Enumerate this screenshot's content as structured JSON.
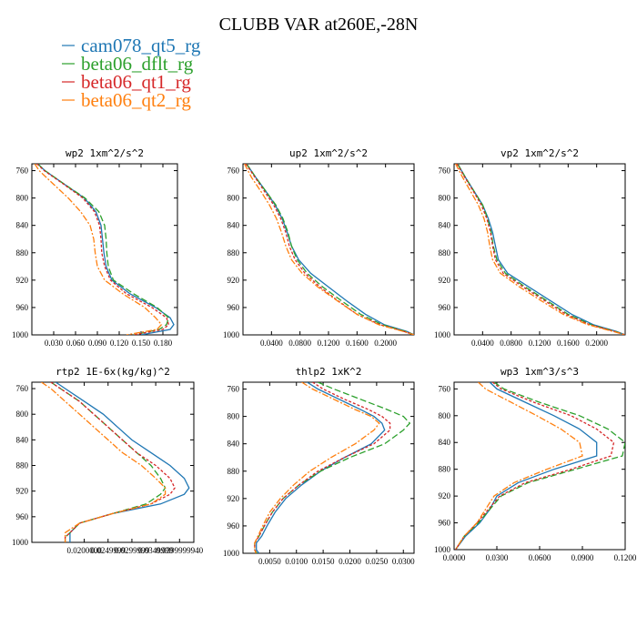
{
  "figure": {
    "title": "CLUBB VAR at260E,-28N",
    "legend": [
      {
        "name": "cam078_qt5_rg",
        "color": "#1f77b4"
      },
      {
        "name": "beta06_dflt_rg",
        "color": "#2ca02c"
      },
      {
        "name": "beta06_qt1_rg",
        "color": "#d62728"
      },
      {
        "name": "beta06_qt2_rg",
        "color": "#ff7f0e"
      }
    ]
  },
  "chart_data": [
    {
      "type": "line",
      "title": "wp2  1xm^2/s^2",
      "xlim": [
        0.0,
        0.2
      ],
      "ylim": [
        1000,
        750
      ],
      "y_reversed": true,
      "xticks": [
        0.03,
        0.06,
        0.09,
        0.12,
        0.15,
        0.18
      ],
      "xtick_labels": [
        "0.030",
        "0.060",
        "0.090",
        "0.120",
        "0.150",
        "0.180"
      ],
      "yticks": [
        760,
        800,
        840,
        880,
        920,
        960,
        1000
      ],
      "y": [
        750,
        760,
        780,
        800,
        820,
        840,
        860,
        880,
        900,
        920,
        940,
        960,
        975,
        985,
        992,
        1000
      ],
      "series": [
        {
          "name": "cam078_qt5_rg",
          "color": "#1f77b4",
          "dash": "",
          "x": [
            0.008,
            0.018,
            0.045,
            0.072,
            0.088,
            0.095,
            0.097,
            0.099,
            0.102,
            0.11,
            0.135,
            0.17,
            0.19,
            0.195,
            0.19,
            0.15
          ]
        },
        {
          "name": "beta06_dflt_rg",
          "color": "#2ca02c",
          "dash": "7,3",
          "x": [
            0.008,
            0.018,
            0.045,
            0.073,
            0.092,
            0.1,
            0.102,
            0.103,
            0.105,
            0.112,
            0.14,
            0.172,
            0.188,
            0.185,
            0.175,
            0.14
          ]
        },
        {
          "name": "beta06_qt1_rg",
          "color": "#d62728",
          "dash": "3,2",
          "x": [
            0.007,
            0.017,
            0.044,
            0.07,
            0.086,
            0.093,
            0.095,
            0.096,
            0.1,
            0.108,
            0.13,
            0.165,
            0.185,
            0.188,
            0.18,
            0.14
          ]
        },
        {
          "name": "beta06_qt2_rg",
          "color": "#ff7f0e",
          "dash": "7,2,2,2",
          "x": [
            0.004,
            0.01,
            0.03,
            0.05,
            0.067,
            0.08,
            0.085,
            0.087,
            0.09,
            0.1,
            0.125,
            0.155,
            0.17,
            0.178,
            0.172,
            0.13
          ]
        }
      ]
    },
    {
      "type": "line",
      "title": "up2  1xm^2/s^2",
      "xlim": [
        0.0,
        0.24
      ],
      "ylim": [
        1000,
        750
      ],
      "y_reversed": true,
      "xticks": [
        0.04,
        0.08,
        0.12,
        0.16,
        0.2
      ],
      "xtick_labels": [
        "0.0400",
        "0.0800",
        "0.1200",
        "0.1600",
        "0.2000"
      ],
      "yticks": [
        760,
        800,
        840,
        880,
        920,
        960,
        1000
      ],
      "y": [
        750,
        770,
        790,
        810,
        830,
        850,
        870,
        890,
        910,
        930,
        950,
        970,
        985,
        995,
        1000
      ],
      "series": [
        {
          "name": "cam078_qt5_rg",
          "color": "#1f77b4",
          "dash": "",
          "x": [
            0.005,
            0.018,
            0.032,
            0.045,
            0.055,
            0.062,
            0.068,
            0.078,
            0.095,
            0.12,
            0.145,
            0.172,
            0.198,
            0.23,
            0.24
          ]
        },
        {
          "name": "beta06_dflt_rg",
          "color": "#2ca02c",
          "dash": "7,3",
          "x": [
            0.005,
            0.018,
            0.032,
            0.046,
            0.056,
            0.063,
            0.068,
            0.076,
            0.09,
            0.112,
            0.138,
            0.165,
            0.195,
            0.228,
            0.24
          ]
        },
        {
          "name": "beta06_qt1_rg",
          "color": "#d62728",
          "dash": "3,2",
          "x": [
            0.004,
            0.017,
            0.03,
            0.043,
            0.053,
            0.06,
            0.065,
            0.073,
            0.087,
            0.108,
            0.133,
            0.16,
            0.192,
            0.226,
            0.24
          ]
        },
        {
          "name": "beta06_qt2_rg",
          "color": "#ff7f0e",
          "dash": "7,2,2,2",
          "x": [
            0.002,
            0.012,
            0.025,
            0.037,
            0.047,
            0.054,
            0.06,
            0.068,
            0.083,
            0.105,
            0.132,
            0.16,
            0.19,
            0.225,
            0.24
          ]
        }
      ]
    },
    {
      "type": "line",
      "title": "vp2  1xm^2/s^2",
      "xlim": [
        0.0,
        0.24
      ],
      "ylim": [
        1000,
        750
      ],
      "y_reversed": true,
      "xticks": [
        0.04,
        0.08,
        0.12,
        0.16,
        0.2
      ],
      "xtick_labels": [
        "0.0400",
        "0.0800",
        "0.1200",
        "0.1600",
        "0.2000"
      ],
      "yticks": [
        760,
        800,
        840,
        880,
        920,
        960,
        1000
      ],
      "y": [
        750,
        770,
        790,
        810,
        830,
        850,
        870,
        890,
        910,
        930,
        950,
        970,
        985,
        995,
        1000
      ],
      "series": [
        {
          "name": "cam078_qt5_rg",
          "color": "#1f77b4",
          "dash": "",
          "x": [
            0.005,
            0.016,
            0.028,
            0.04,
            0.048,
            0.054,
            0.058,
            0.062,
            0.075,
            0.105,
            0.135,
            0.165,
            0.195,
            0.228,
            0.24
          ]
        },
        {
          "name": "beta06_dflt_rg",
          "color": "#2ca02c",
          "dash": "7,3",
          "x": [
            0.005,
            0.016,
            0.028,
            0.04,
            0.047,
            0.052,
            0.055,
            0.06,
            0.072,
            0.1,
            0.13,
            0.16,
            0.192,
            0.226,
            0.24
          ]
        },
        {
          "name": "beta06_qt1_rg",
          "color": "#d62728",
          "dash": "3,2",
          "x": [
            0.004,
            0.015,
            0.027,
            0.038,
            0.046,
            0.051,
            0.054,
            0.058,
            0.069,
            0.097,
            0.127,
            0.157,
            0.19,
            0.225,
            0.24
          ]
        },
        {
          "name": "beta06_qt2_rg",
          "color": "#ff7f0e",
          "dash": "7,2,2,2",
          "x": [
            0.002,
            0.012,
            0.023,
            0.034,
            0.042,
            0.047,
            0.05,
            0.054,
            0.065,
            0.092,
            0.122,
            0.153,
            0.187,
            0.223,
            0.24
          ]
        }
      ]
    },
    {
      "type": "line",
      "title": "rtp2  1E-6x(kg/kg)^2",
      "xlim": [
        0.009,
        0.043
      ],
      "ylim": [
        1000,
        750
      ],
      "y_reversed": true,
      "xticks": [
        0.02,
        0.025,
        0.03,
        0.035,
        0.04
      ],
      "xtick_labels": [
        "0.0200000",
        "0.0249999",
        "0.0299999",
        "0.0349999",
        "0.0399999940"
      ],
      "yticks": [
        760,
        800,
        840,
        880,
        920,
        960,
        1000
      ],
      "y": [
        750,
        760,
        780,
        800,
        820,
        840,
        860,
        880,
        900,
        915,
        925,
        940,
        955,
        970,
        985,
        992,
        1000
      ],
      "series": [
        {
          "name": "cam078_qt5_rg",
          "color": "#1f77b4",
          "dash": "",
          "x": [
            0.014,
            0.016,
            0.02,
            0.024,
            0.027,
            0.03,
            0.034,
            0.038,
            0.041,
            0.042,
            0.041,
            0.036,
            0.026,
            0.019,
            0.017,
            0.017,
            0.017
          ]
        },
        {
          "name": "beta06_dflt_rg",
          "color": "#2ca02c",
          "dash": "7,3",
          "x": [
            0.013,
            0.015,
            0.019,
            0.022,
            0.025,
            0.028,
            0.031,
            0.034,
            0.036,
            0.037,
            0.036,
            0.033,
            0.026,
            0.019,
            0.017,
            0.016,
            0.016
          ]
        },
        {
          "name": "beta06_qt1_rg",
          "color": "#d62728",
          "dash": "3,2",
          "x": [
            0.013,
            0.015,
            0.019,
            0.022,
            0.025,
            0.028,
            0.031,
            0.035,
            0.038,
            0.039,
            0.038,
            0.034,
            0.026,
            0.019,
            0.017,
            0.016,
            0.016
          ]
        },
        {
          "name": "beta06_qt2_rg",
          "color": "#ff7f0e",
          "dash": "7,2,2,2",
          "x": [
            0.011,
            0.013,
            0.016,
            0.019,
            0.022,
            0.025,
            0.028,
            0.032,
            0.035,
            0.037,
            0.037,
            0.034,
            0.026,
            0.019,
            0.016,
            0.016,
            0.016
          ]
        }
      ]
    },
    {
      "type": "line",
      "title": "thlp2  1xK^2",
      "xlim": [
        0.0,
        0.032
      ],
      "ylim": [
        1000,
        750
      ],
      "y_reversed": true,
      "xticks": [
        0.005,
        0.01,
        0.015,
        0.02,
        0.025,
        0.03
      ],
      "xtick_labels": [
        "0.0050",
        "0.0100",
        "0.0150",
        "0.0200",
        "0.0250",
        "0.0300"
      ],
      "yticks": [
        760,
        800,
        840,
        880,
        920,
        960,
        1000
      ],
      "y": [
        750,
        760,
        775,
        790,
        800,
        810,
        820,
        840,
        860,
        880,
        900,
        920,
        940,
        960,
        975,
        985,
        995,
        1000
      ],
      "series": [
        {
          "name": "cam078_qt5_rg",
          "color": "#1f77b4",
          "dash": "",
          "x": [
            0.012,
            0.014,
            0.018,
            0.022,
            0.0245,
            0.026,
            0.0265,
            0.024,
            0.019,
            0.0145,
            0.011,
            0.008,
            0.006,
            0.0045,
            0.0035,
            0.0025,
            0.0025,
            0.003
          ]
        },
        {
          "name": "beta06_dflt_rg",
          "color": "#2ca02c",
          "dash": "7,3",
          "x": [
            0.014,
            0.017,
            0.022,
            0.027,
            0.03,
            0.0312,
            0.03,
            0.0265,
            0.02,
            0.0145,
            0.0105,
            0.0075,
            0.0055,
            0.004,
            0.003,
            0.0022,
            0.0022,
            0.0026
          ]
        },
        {
          "name": "beta06_qt1_rg",
          "color": "#d62728",
          "dash": "3,2",
          "x": [
            0.013,
            0.015,
            0.019,
            0.0235,
            0.026,
            0.0275,
            0.0275,
            0.0245,
            0.019,
            0.014,
            0.0105,
            0.0075,
            0.0055,
            0.004,
            0.003,
            0.0022,
            0.0022,
            0.0026
          ]
        },
        {
          "name": "beta06_qt2_rg",
          "color": "#ff7f0e",
          "dash": "7,2,2,2",
          "x": [
            0.011,
            0.013,
            0.017,
            0.021,
            0.024,
            0.0255,
            0.0245,
            0.021,
            0.0165,
            0.0125,
            0.0095,
            0.007,
            0.005,
            0.0037,
            0.0028,
            0.0022,
            0.0022,
            0.0024
          ]
        }
      ]
    },
    {
      "type": "line",
      "title": "wp3  1xm^3/s^3",
      "xlim": [
        0.0,
        0.12
      ],
      "ylim": [
        1000,
        750
      ],
      "y_reversed": true,
      "xticks": [
        0.0,
        0.03,
        0.06,
        0.09,
        0.12
      ],
      "xtick_labels": [
        "0.0000",
        "0.0300",
        "0.0600",
        "0.0900",
        "0.1200"
      ],
      "yticks": [
        760,
        800,
        840,
        880,
        920,
        960,
        1000
      ],
      "y": [
        750,
        760,
        780,
        800,
        820,
        840,
        860,
        880,
        900,
        920,
        940,
        960,
        980,
        1000
      ],
      "series": [
        {
          "name": "cam078_qt5_rg",
          "color": "#1f77b4",
          "dash": "",
          "x": [
            0.025,
            0.03,
            0.05,
            0.07,
            0.088,
            0.1,
            0.1,
            0.07,
            0.045,
            0.03,
            0.025,
            0.018,
            0.008,
            0.001
          ]
        },
        {
          "name": "beta06_dflt_rg",
          "color": "#2ca02c",
          "dash": "7,3",
          "x": [
            0.028,
            0.035,
            0.06,
            0.088,
            0.108,
            0.12,
            0.118,
            0.085,
            0.052,
            0.033,
            0.025,
            0.017,
            0.007,
            0.001
          ]
        },
        {
          "name": "beta06_qt1_rg",
          "color": "#d62728",
          "dash": "3,2",
          "x": [
            0.027,
            0.033,
            0.056,
            0.082,
            0.1,
            0.112,
            0.11,
            0.082,
            0.05,
            0.032,
            0.024,
            0.016,
            0.007,
            0.001
          ]
        },
        {
          "name": "beta06_qt2_rg",
          "color": "#ff7f0e",
          "dash": "7,2,2,2",
          "x": [
            0.017,
            0.022,
            0.04,
            0.058,
            0.075,
            0.088,
            0.09,
            0.065,
            0.042,
            0.028,
            0.022,
            0.016,
            0.007,
            0.001
          ]
        }
      ]
    }
  ]
}
